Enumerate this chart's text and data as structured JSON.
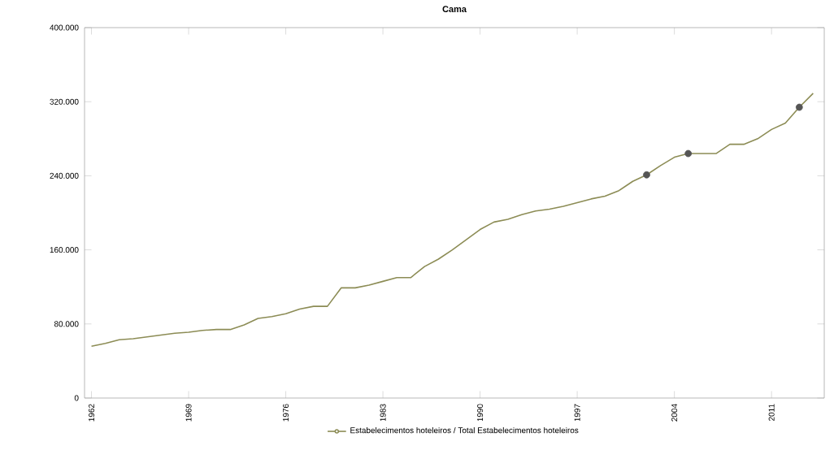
{
  "chart_data": {
    "type": "line",
    "title": "Cama",
    "x": [
      1962,
      1963,
      1964,
      1965,
      1966,
      1967,
      1968,
      1969,
      1970,
      1971,
      1972,
      1973,
      1974,
      1975,
      1976,
      1977,
      1978,
      1979,
      1980,
      1981,
      1982,
      1983,
      1984,
      1985,
      1986,
      1987,
      1988,
      1989,
      1990,
      1991,
      1992,
      1993,
      1994,
      1995,
      1996,
      1997,
      1998,
      1999,
      2000,
      2001,
      2002,
      2003,
      2004,
      2005,
      2006,
      2007,
      2008,
      2009,
      2010,
      2011,
      2012,
      2013,
      2014
    ],
    "series": [
      {
        "name": "Estabelecimentos hoteleiros / Total Estabelecimentos hoteleiros",
        "color": "#8c8c55",
        "marker": "none",
        "values": [
          56000,
          59000,
          63000,
          64000,
          66000,
          68000,
          70000,
          71000,
          73000,
          74000,
          74000,
          79000,
          86000,
          88000,
          91000,
          96000,
          99000,
          99000,
          119000,
          119000,
          122000,
          126000,
          130000,
          130000,
          142000,
          150000,
          160000,
          171000,
          182000,
          190000,
          193000,
          198000,
          202000,
          204000,
          207000,
          211000,
          215000,
          218000,
          224000,
          234000,
          241000,
          251000,
          260000,
          264000,
          264000,
          264000,
          274000,
          274000,
          280000,
          290000,
          297000,
          314000,
          329000
        ]
      },
      {
        "type": "scatter",
        "color": "#555555",
        "marker": "circle",
        "x": [
          2002,
          2005,
          2013
        ],
        "values": [
          241000,
          264000,
          314000
        ]
      }
    ],
    "xlim": [
      1961.5,
      2014.8
    ],
    "ylim": [
      0,
      400000
    ],
    "xticks": [
      1962,
      1969,
      1976,
      1983,
      1990,
      1997,
      2004,
      2011
    ],
    "yticks": [
      0,
      {
        "value": 80000,
        "label": "80.000"
      },
      {
        "value": 160000,
        "label": "160.000"
      },
      {
        "value": 240000,
        "label": "240.000"
      },
      {
        "value": 320000,
        "label": "320.000"
      },
      {
        "value": 400000,
        "label": "400.000"
      }
    ],
    "grid": false,
    "legend": "bottom",
    "line_style": "solid"
  }
}
